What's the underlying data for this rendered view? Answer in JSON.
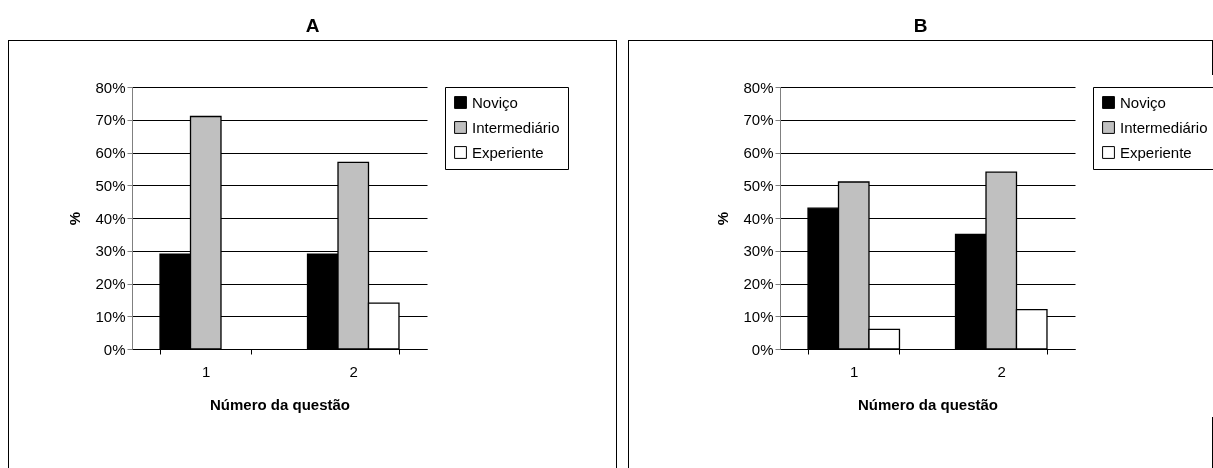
{
  "chart_data": [
    {
      "type": "bar",
      "title": "A",
      "xlabel": "Número da questão",
      "ylabel": "%",
      "categories": [
        "1",
        "2"
      ],
      "series": [
        {
          "name": "Noviço",
          "color": "#000000",
          "values": [
            29,
            29
          ]
        },
        {
          "name": "Intermediário",
          "color": "#c0c0c0",
          "values": [
            71,
            57
          ]
        },
        {
          "name": "Experiente",
          "color": "#ffffff",
          "values": [
            null,
            14
          ]
        }
      ],
      "ylim": [
        0,
        80
      ],
      "yticks": [
        {
          "value": 0,
          "label": "0%"
        },
        {
          "value": 10,
          "label": "10%"
        },
        {
          "value": 20,
          "label": "20%"
        },
        {
          "value": 30,
          "label": "30%"
        },
        {
          "value": 40,
          "label": "40%"
        },
        {
          "value": 50,
          "label": "50%"
        },
        {
          "value": 60,
          "label": "60%"
        },
        {
          "value": 70,
          "label": "70%"
        },
        {
          "value": 80,
          "label": "80%"
        }
      ],
      "grid": "y",
      "legend": "right"
    },
    {
      "type": "bar",
      "title": "B",
      "xlabel": "Número da questão",
      "ylabel": "%",
      "categories": [
        "1",
        "2"
      ],
      "series": [
        {
          "name": "Noviço",
          "color": "#000000",
          "values": [
            43,
            35
          ]
        },
        {
          "name": "Intermediário",
          "color": "#c0c0c0",
          "values": [
            51,
            54
          ]
        },
        {
          "name": "Experiente",
          "color": "#ffffff",
          "values": [
            6,
            12
          ]
        }
      ],
      "ylim": [
        0,
        80
      ],
      "yticks": [
        {
          "value": 0,
          "label": "0%"
        },
        {
          "value": 10,
          "label": "10%"
        },
        {
          "value": 20,
          "label": "20%"
        },
        {
          "value": 30,
          "label": "30%"
        },
        {
          "value": 40,
          "label": "40%"
        },
        {
          "value": 50,
          "label": "50%"
        },
        {
          "value": 60,
          "label": "60%"
        },
        {
          "value": 70,
          "label": "70%"
        },
        {
          "value": 80,
          "label": "80%"
        }
      ],
      "grid": "y",
      "legend": "right"
    }
  ]
}
